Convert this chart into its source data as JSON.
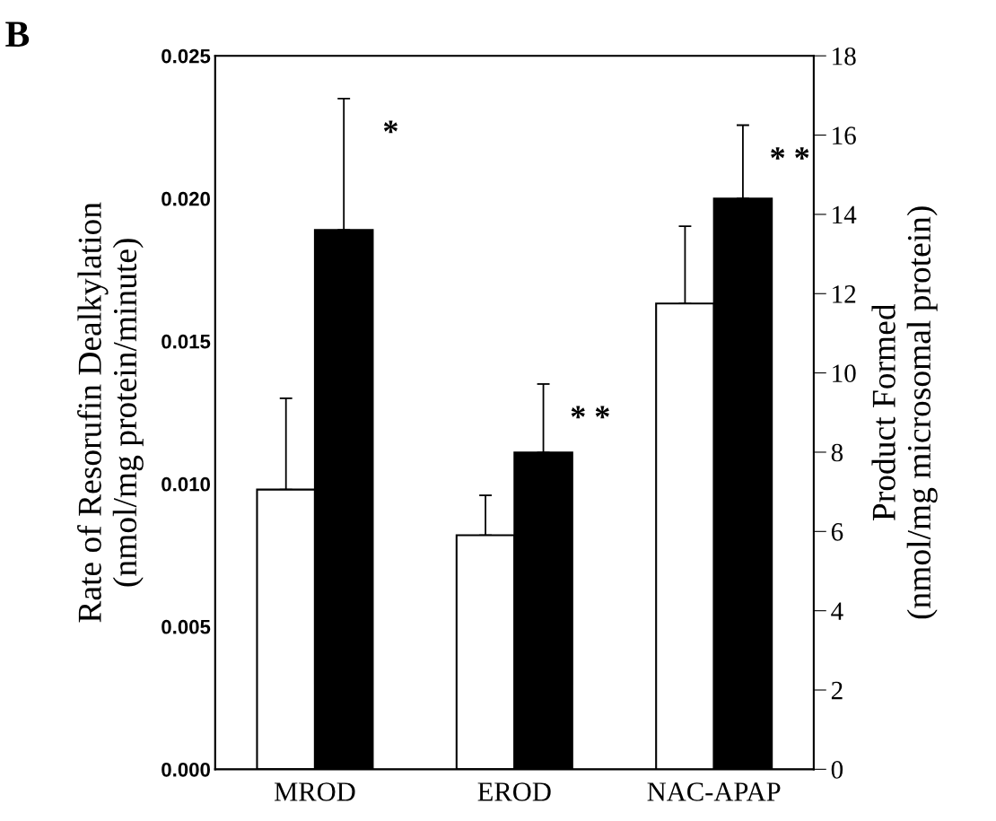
{
  "chart_data": {
    "type": "bar",
    "categories": [
      "MROD",
      "EROD",
      "NAC-APAP"
    ],
    "ylabel": "Rate of Resorufin Dealkylation\n(nmol/mg protein/minute)",
    "y2label": "Product Formed\n(nmol/mg microsomal protein)",
    "series": [
      {
        "color": "#ffffff",
        "values": [
          0.0098,
          0.0082,
          null
        ],
        "errors": [
          0.0032,
          0.0014,
          null
        ]
      },
      {
        "color": "#000000",
        "values": [
          0.0189,
          0.0111,
          null
        ],
        "errors": [
          0.0046,
          0.0024,
          null
        ]
      },
      {
        "color": "#ffffff",
        "axis": "y2",
        "values": [
          null,
          null,
          11.75
        ],
        "errors": [
          null,
          null,
          1.95
        ]
      },
      {
        "color": "#000000",
        "axis": "y2",
        "values": [
          null,
          null,
          14.4
        ],
        "errors": [
          null,
          null,
          1.85
        ]
      }
    ],
    "ylim": [
      0,
      0.025
    ],
    "yticks": [
      {
        "value": 0,
        "label": "0.000"
      },
      {
        "value": 0.005,
        "label": "0.005"
      },
      {
        "value": 0.01,
        "label": "0.010"
      },
      {
        "value": 0.015,
        "label": "0.015"
      },
      {
        "value": 0.02,
        "label": "0.020"
      },
      {
        "value": 0.025,
        "label": "0.025"
      }
    ],
    "y2lim": [
      0,
      18
    ],
    "y2ticks": [
      0,
      2,
      4,
      6,
      8,
      10,
      12,
      14,
      16,
      18
    ],
    "annotations": [
      "B",
      "*",
      "* *",
      "* *"
    ],
    "grid": false,
    "legend": false
  }
}
